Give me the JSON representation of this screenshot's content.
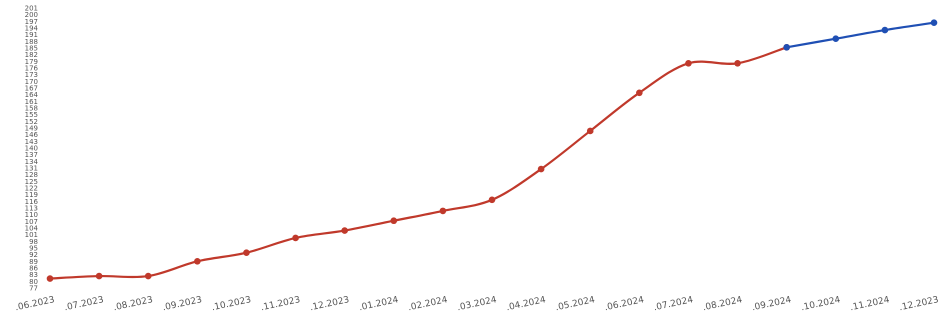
{
  "chart_data": {
    "type": "line",
    "title": "",
    "xlabel": "",
    "ylabel": "",
    "grid": false,
    "legend": "none",
    "categories": [
      ".06.2023",
      ".07.2023",
      ".08.2023",
      ".09.2023",
      ".10.2023",
      ".11.2023",
      ".12.2023",
      ".01.2024",
      ".02.2024",
      ".03.2024",
      ".04.2024",
      ".05.2024",
      ".06.2024",
      ".07.2024",
      ".08.2024",
      ".09.2024",
      ".10.2024",
      ".11.2024",
      ".12.2023"
    ],
    "ylim": [
      0,
      100
    ],
    "y_ticks": [
      "201",
      "200",
      "197",
      "194",
      "191",
      "188",
      "185",
      "182",
      "179",
      "176",
      "173",
      "170",
      "167",
      "164",
      "161",
      "158",
      "155",
      "152",
      "149",
      "146",
      "143",
      "140",
      "137",
      "134",
      "131",
      "128",
      "125",
      "122",
      "119",
      "116",
      "113",
      "110",
      "107",
      "104",
      "101",
      "98",
      "95",
      "92",
      "89",
      "86",
      "83",
      "80",
      "77"
    ],
    "series": [
      {
        "color": "#c0392b",
        "values": [
          1,
          2,
          2,
          8,
          11.5,
          17.5,
          20.5,
          24.5,
          28.5,
          33,
          45.5,
          61,
          76.5,
          88.5,
          88.5,
          95,
          null,
          null,
          null
        ]
      },
      {
        "color": "#1f4fb4",
        "values": [
          null,
          null,
          null,
          null,
          null,
          null,
          null,
          null,
          null,
          null,
          null,
          null,
          null,
          null,
          null,
          95,
          98.5,
          102,
          105
        ]
      }
    ]
  }
}
